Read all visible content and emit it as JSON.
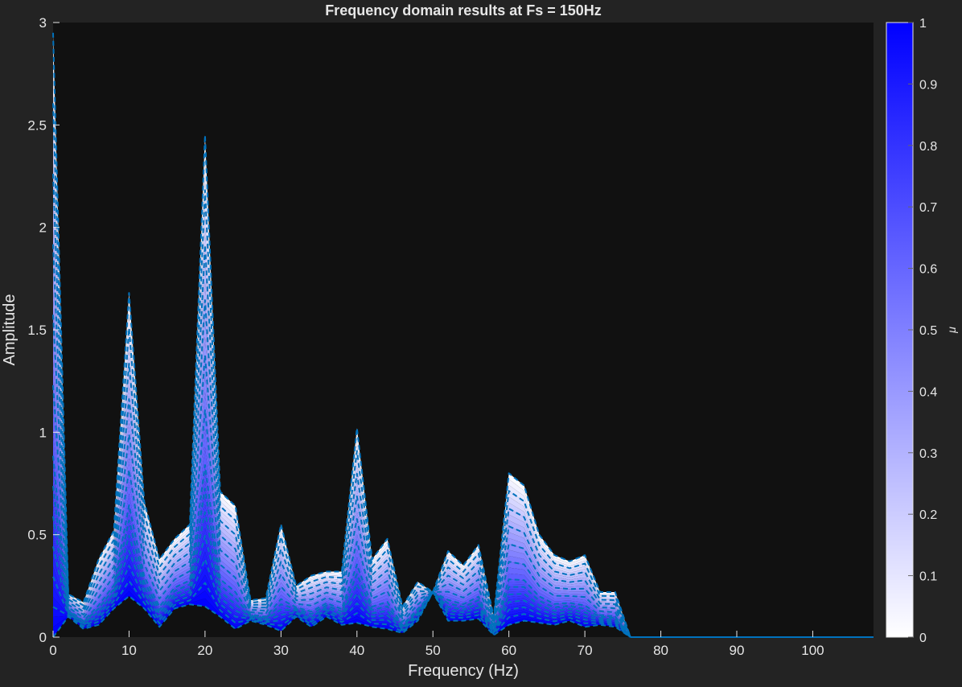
{
  "chart_data": {
    "type": "line",
    "title": "Frequency domain results at Fs = 150Hz",
    "xlabel": "Frequency (Hz)",
    "ylabel": "Amplitude",
    "xlim": [
      0,
      108
    ],
    "ylim": [
      0,
      3
    ],
    "xticks": [
      "0",
      "10",
      "20",
      "30",
      "40",
      "50",
      "60",
      "70",
      "80",
      "90",
      "100"
    ],
    "yticks": [
      "0",
      "0.5",
      "1",
      "1.5",
      "2",
      "2.5",
      "3"
    ],
    "grid": false,
    "background_color": "#111111",
    "figure_color": "#232323",
    "line_color": "#0072bd",
    "line_style": "dashed",
    "fill_low_color": "#ffffff",
    "fill_high_color": "#0000ff",
    "x": [
      0,
      2,
      4,
      6,
      8,
      10,
      12,
      14,
      16,
      18,
      20,
      22,
      24,
      26,
      28,
      30,
      32,
      34,
      36,
      38,
      40,
      42,
      44,
      46,
      48,
      50,
      52,
      54,
      56,
      58,
      60,
      62,
      64,
      66,
      68,
      70,
      72,
      74,
      76,
      78,
      80,
      82,
      84,
      86,
      88,
      90,
      92,
      94,
      96,
      98,
      100,
      102,
      104,
      106,
      108
    ],
    "series": [
      {
        "values": [
          2.95,
          0.21,
          0.17,
          0.38,
          0.52,
          1.68,
          0.66,
          0.38,
          0.48,
          0.55,
          2.45,
          0.71,
          0.64,
          0.18,
          0.19,
          0.55,
          0.25,
          0.3,
          0.32,
          0.32,
          1.02,
          0.38,
          0.48,
          0.15,
          0.27,
          0.22,
          0.42,
          0.35,
          0.45,
          0.1,
          0.8,
          0.74,
          0.5,
          0.4,
          0.37,
          0.4,
          0.22,
          0.22,
          0.0,
          0,
          0,
          0,
          0,
          0,
          0,
          0,
          0,
          0,
          0,
          0,
          0,
          0,
          0,
          0,
          0
        ]
      },
      {
        "values": [
          0.0,
          0.1,
          0.04,
          0.06,
          0.14,
          0.2,
          0.14,
          0.05,
          0.14,
          0.16,
          0.15,
          0.1,
          0.04,
          0.08,
          0.06,
          0.03,
          0.1,
          0.05,
          0.1,
          0.06,
          0.07,
          0.05,
          0.04,
          0.02,
          0.08,
          0.22,
          0.08,
          0.08,
          0.09,
          0.01,
          0.06,
          0.08,
          0.07,
          0.06,
          0.08,
          0.05,
          0.06,
          0.05,
          0.0,
          0,
          0,
          0,
          0,
          0,
          0,
          0,
          0,
          0,
          0,
          0,
          0,
          0,
          0,
          0,
          0
        ]
      }
    ],
    "colorbar": {
      "label": "μ",
      "range": [
        0,
        1
      ],
      "ticks": [
        "0",
        "0.1",
        "0.2",
        "0.3",
        "0.4",
        "0.5",
        "0.6",
        "0.7",
        "0.8",
        "0.9",
        "1"
      ]
    }
  }
}
